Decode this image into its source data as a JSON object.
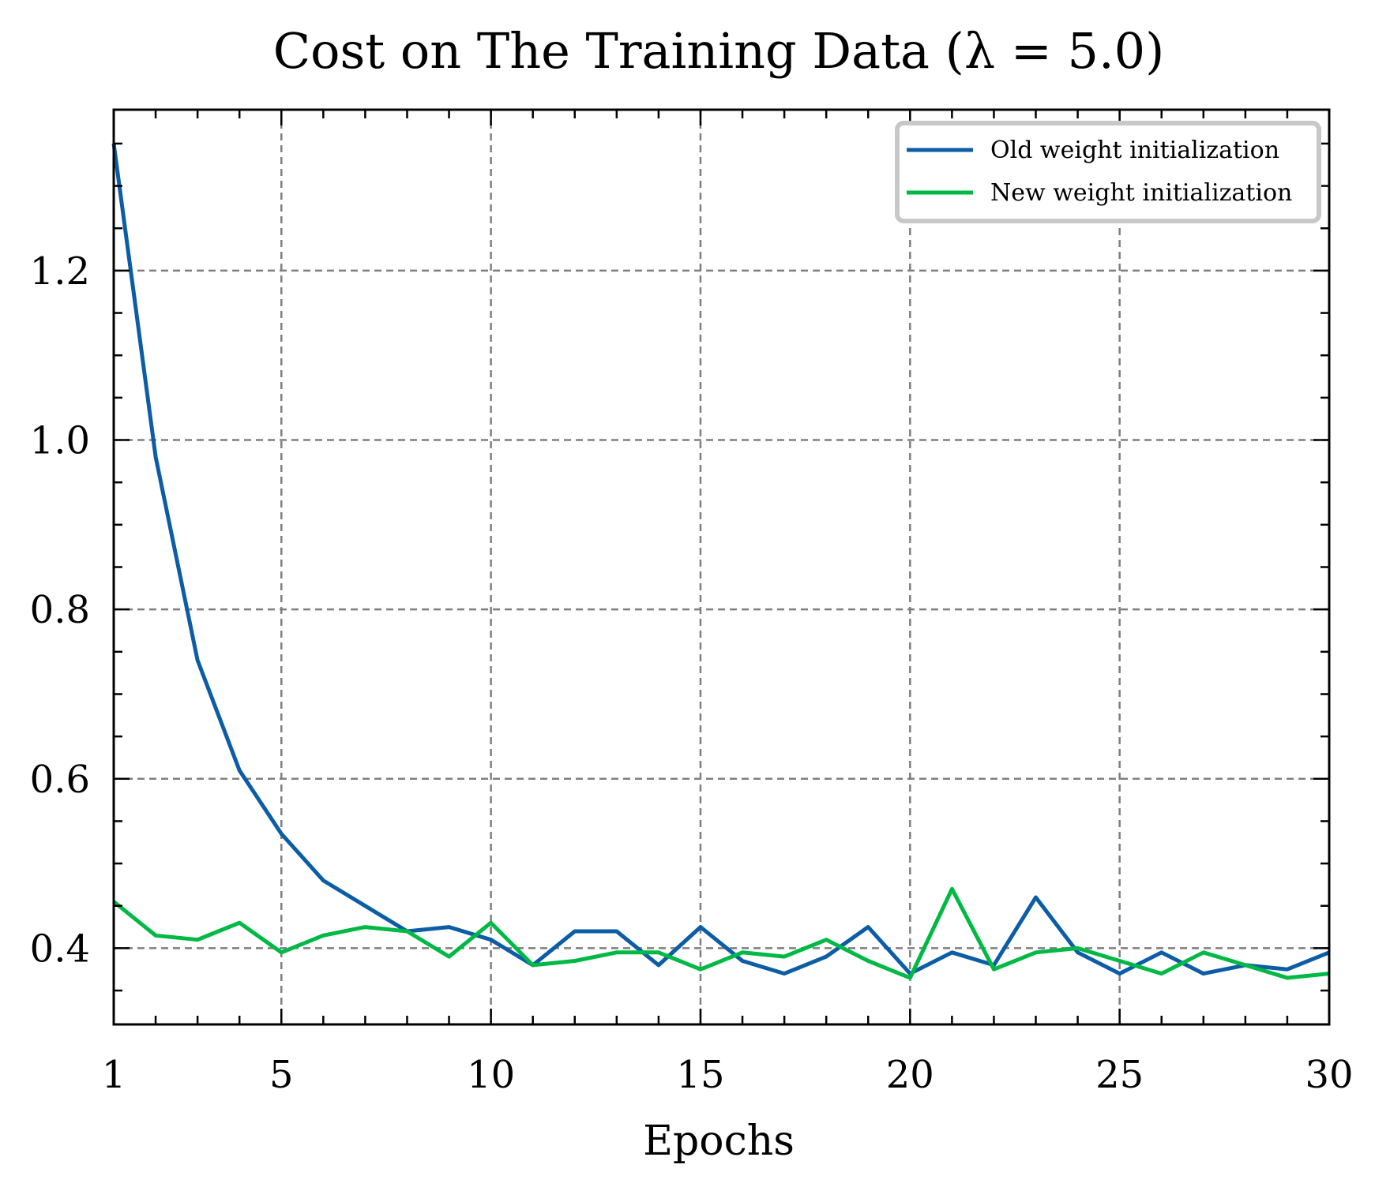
{
  "chart_data": {
    "type": "line",
    "title": "Cost on The Training Data (λ = 5.0)",
    "xlabel": "Epochs",
    "ylabel": "",
    "xlim": [
      1,
      30
    ],
    "ylim": [
      0.31,
      1.39
    ],
    "x_ticks": [
      1,
      5,
      10,
      15,
      20,
      25,
      30
    ],
    "x_tick_labels": [
      "1",
      "5",
      "10",
      "15",
      "20",
      "25",
      "30"
    ],
    "y_ticks": [
      0.4,
      0.6,
      0.8,
      1.0,
      1.2
    ],
    "y_tick_labels": [
      "0.4",
      "0.6",
      "0.8",
      "1.0",
      "1.2"
    ],
    "grid": true,
    "legend_position": "top-right",
    "x": [
      1,
      2,
      3,
      4,
      5,
      6,
      7,
      8,
      9,
      10,
      11,
      12,
      13,
      14,
      15,
      16,
      17,
      18,
      19,
      20,
      21,
      22,
      23,
      24,
      25,
      26,
      27,
      28,
      29,
      30
    ],
    "series": [
      {
        "name": "Old weight initialization",
        "color": "#0C5DA5",
        "values": [
          1.35,
          0.98,
          0.74,
          0.61,
          0.535,
          0.48,
          0.45,
          0.42,
          0.425,
          0.41,
          0.38,
          0.42,
          0.42,
          0.38,
          0.425,
          0.385,
          0.37,
          0.39,
          0.425,
          0.37,
          0.395,
          0.38,
          0.46,
          0.395,
          0.37,
          0.395,
          0.37,
          0.38,
          0.375,
          0.395
        ]
      },
      {
        "name": "New weight initialization",
        "color": "#00B945",
        "values": [
          0.455,
          0.415,
          0.41,
          0.43,
          0.395,
          0.415,
          0.425,
          0.42,
          0.39,
          0.43,
          0.38,
          0.385,
          0.395,
          0.395,
          0.375,
          0.395,
          0.39,
          0.41,
          0.385,
          0.365,
          0.47,
          0.375,
          0.395,
          0.4,
          0.385,
          0.37,
          0.395,
          0.38,
          0.365,
          0.37
        ]
      }
    ]
  }
}
